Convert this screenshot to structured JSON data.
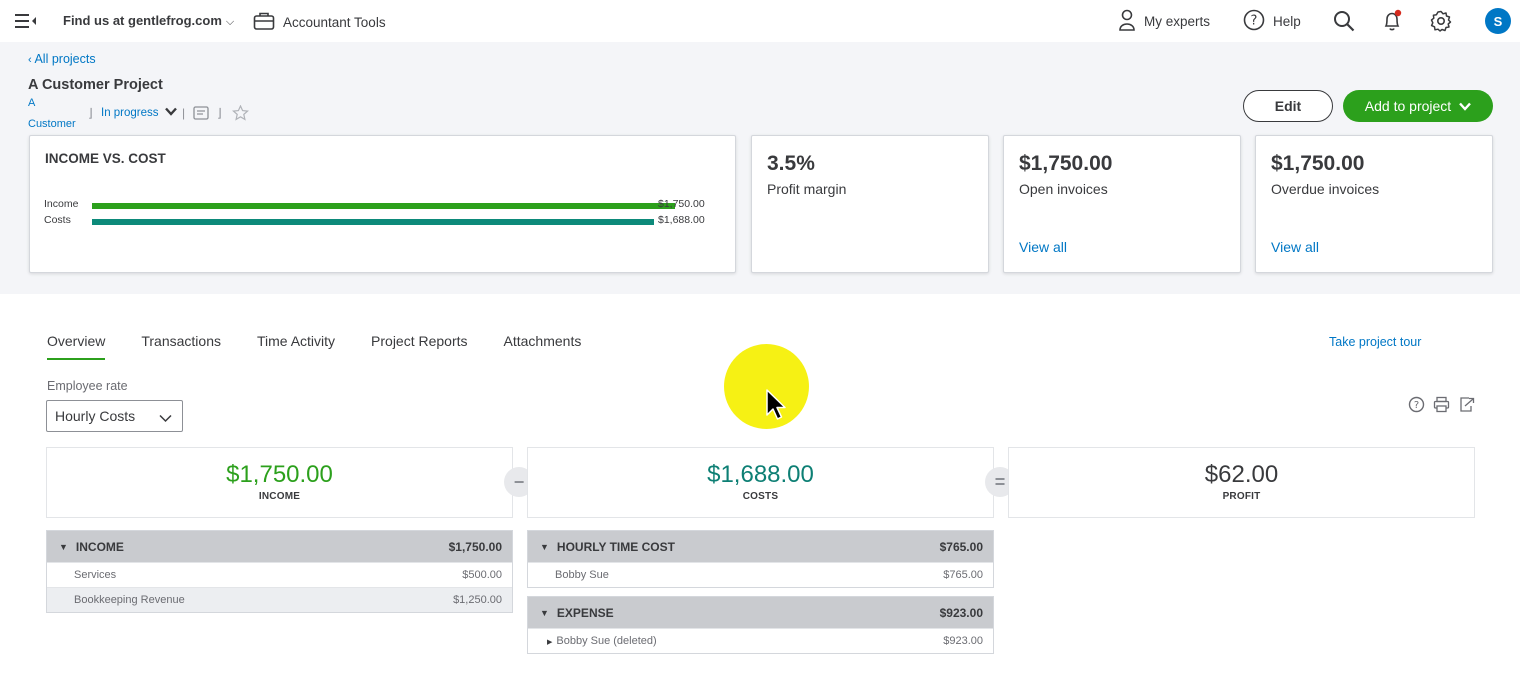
{
  "topbar": {
    "company": "Find us at gentlefrog.com",
    "accountant_tools": "Accountant Tools",
    "my_experts": "My experts",
    "help": "Help",
    "avatar_initial": "S"
  },
  "project": {
    "back_link": "All projects",
    "title": "A Customer Project",
    "customer_line1": "A",
    "customer_line2": "Customer",
    "status": "In progress",
    "edit_label": "Edit",
    "add_label": "Add to project"
  },
  "income_vs_cost": {
    "title": "INCOME VS. COST",
    "income_label": "Income",
    "income_value": "$1,750.00",
    "costs_label": "Costs",
    "costs_value": "$1,688.00",
    "income_fraction": 1.0,
    "costs_fraction": 0.9646,
    "income_color": "#2ca01c",
    "costs_color": "#0d8a7a"
  },
  "kpis": [
    {
      "value": "3.5%",
      "label": "Profit margin"
    },
    {
      "value": "$1,750.00",
      "label": "Open invoices",
      "link": "View all"
    },
    {
      "value": "$1,750.00",
      "label": "Overdue invoices",
      "link": "View all"
    }
  ],
  "tabs": [
    "Overview",
    "Transactions",
    "Time Activity",
    "Project Reports",
    "Attachments"
  ],
  "tour_link": "Take project tour",
  "employee_rate": {
    "label": "Employee rate",
    "selected": "Hourly Costs"
  },
  "summary": {
    "income_value": "$1,750.00",
    "income_label": "INCOME",
    "costs_value": "$1,688.00",
    "costs_label": "COSTS",
    "profit_value": "$62.00",
    "profit_label": "PROFIT",
    "income_color": "#2ca01c",
    "costs_color": "#0d7f74",
    "profit_color": "#393a3d"
  },
  "income_table": {
    "header": "INCOME",
    "header_total": "$1,750.00",
    "rows": [
      {
        "name": "Services",
        "amount": "$500.00"
      },
      {
        "name": "Bookkeeping Revenue",
        "amount": "$1,250.00"
      }
    ]
  },
  "hourly_table": {
    "header": "HOURLY TIME COST",
    "header_total": "$765.00",
    "rows": [
      {
        "name": "Bobby Sue",
        "amount": "$765.00"
      }
    ]
  },
  "expense_table": {
    "header": "EXPENSE",
    "header_total": "$923.00",
    "rows": [
      {
        "name": "Bobby Sue (deleted)",
        "amount": "$923.00"
      }
    ]
  }
}
